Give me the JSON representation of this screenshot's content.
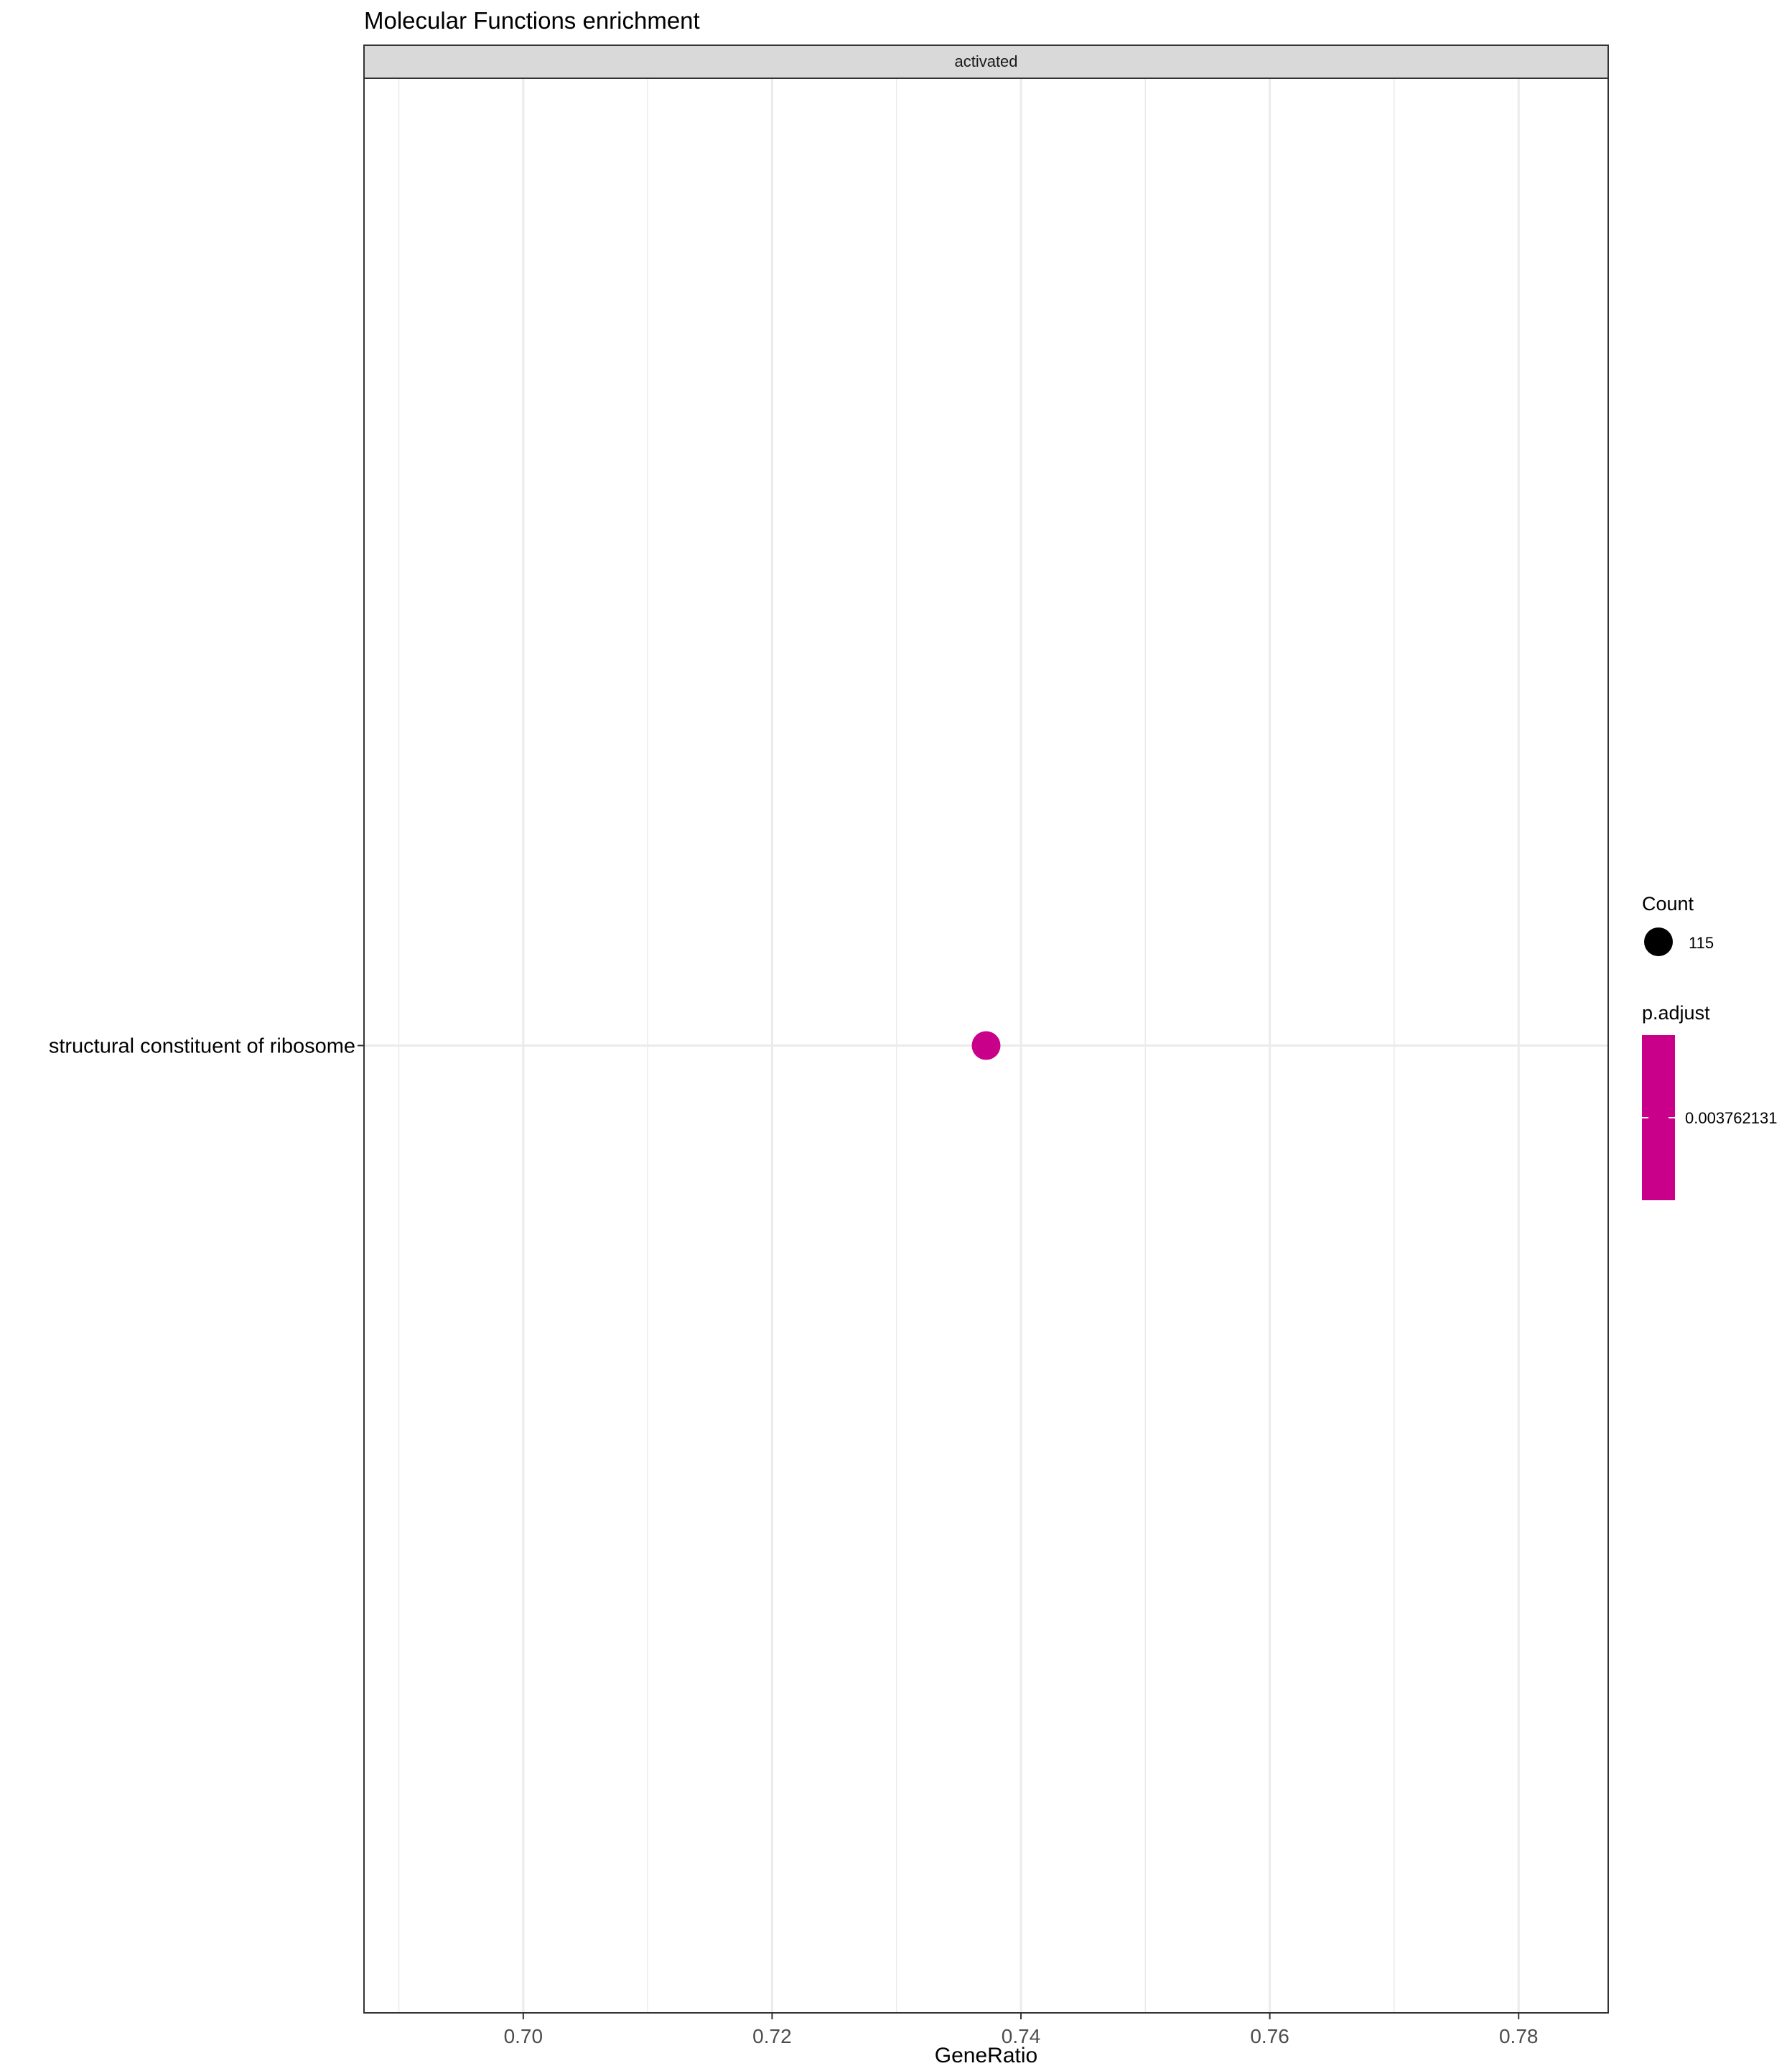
{
  "chart_data": {
    "type": "scatter",
    "title": "Molecular Functions enrichment",
    "facet": "activated",
    "xlabel": "GeneRatio",
    "ylabel": "",
    "xlim": [
      0.6872,
      0.7872
    ],
    "x_ticks": [
      0.7,
      0.72,
      0.74,
      0.76,
      0.78
    ],
    "x_tick_labels": [
      "0.70",
      "0.72",
      "0.74",
      "0.76",
      "0.78"
    ],
    "categories": [
      "structural constituent of ribosome"
    ],
    "points": [
      {
        "category": "structural constituent of ribosome",
        "x": 0.7372,
        "count": 115,
        "p_adjust": 0.003762131
      }
    ],
    "grid": true,
    "legend": {
      "position": "right",
      "size": {
        "title": "Count",
        "entries": [
          {
            "label": "115",
            "value": 115
          }
        ]
      },
      "color": {
        "title": "p.adjust",
        "entries": [
          {
            "label": "0.003762131",
            "value": 0.003762131
          }
        ]
      }
    },
    "colors": {
      "point": "#C8008A",
      "gridline": "#EBEBEB",
      "strip": "#D9D9D9",
      "border": "#333333"
    }
  }
}
